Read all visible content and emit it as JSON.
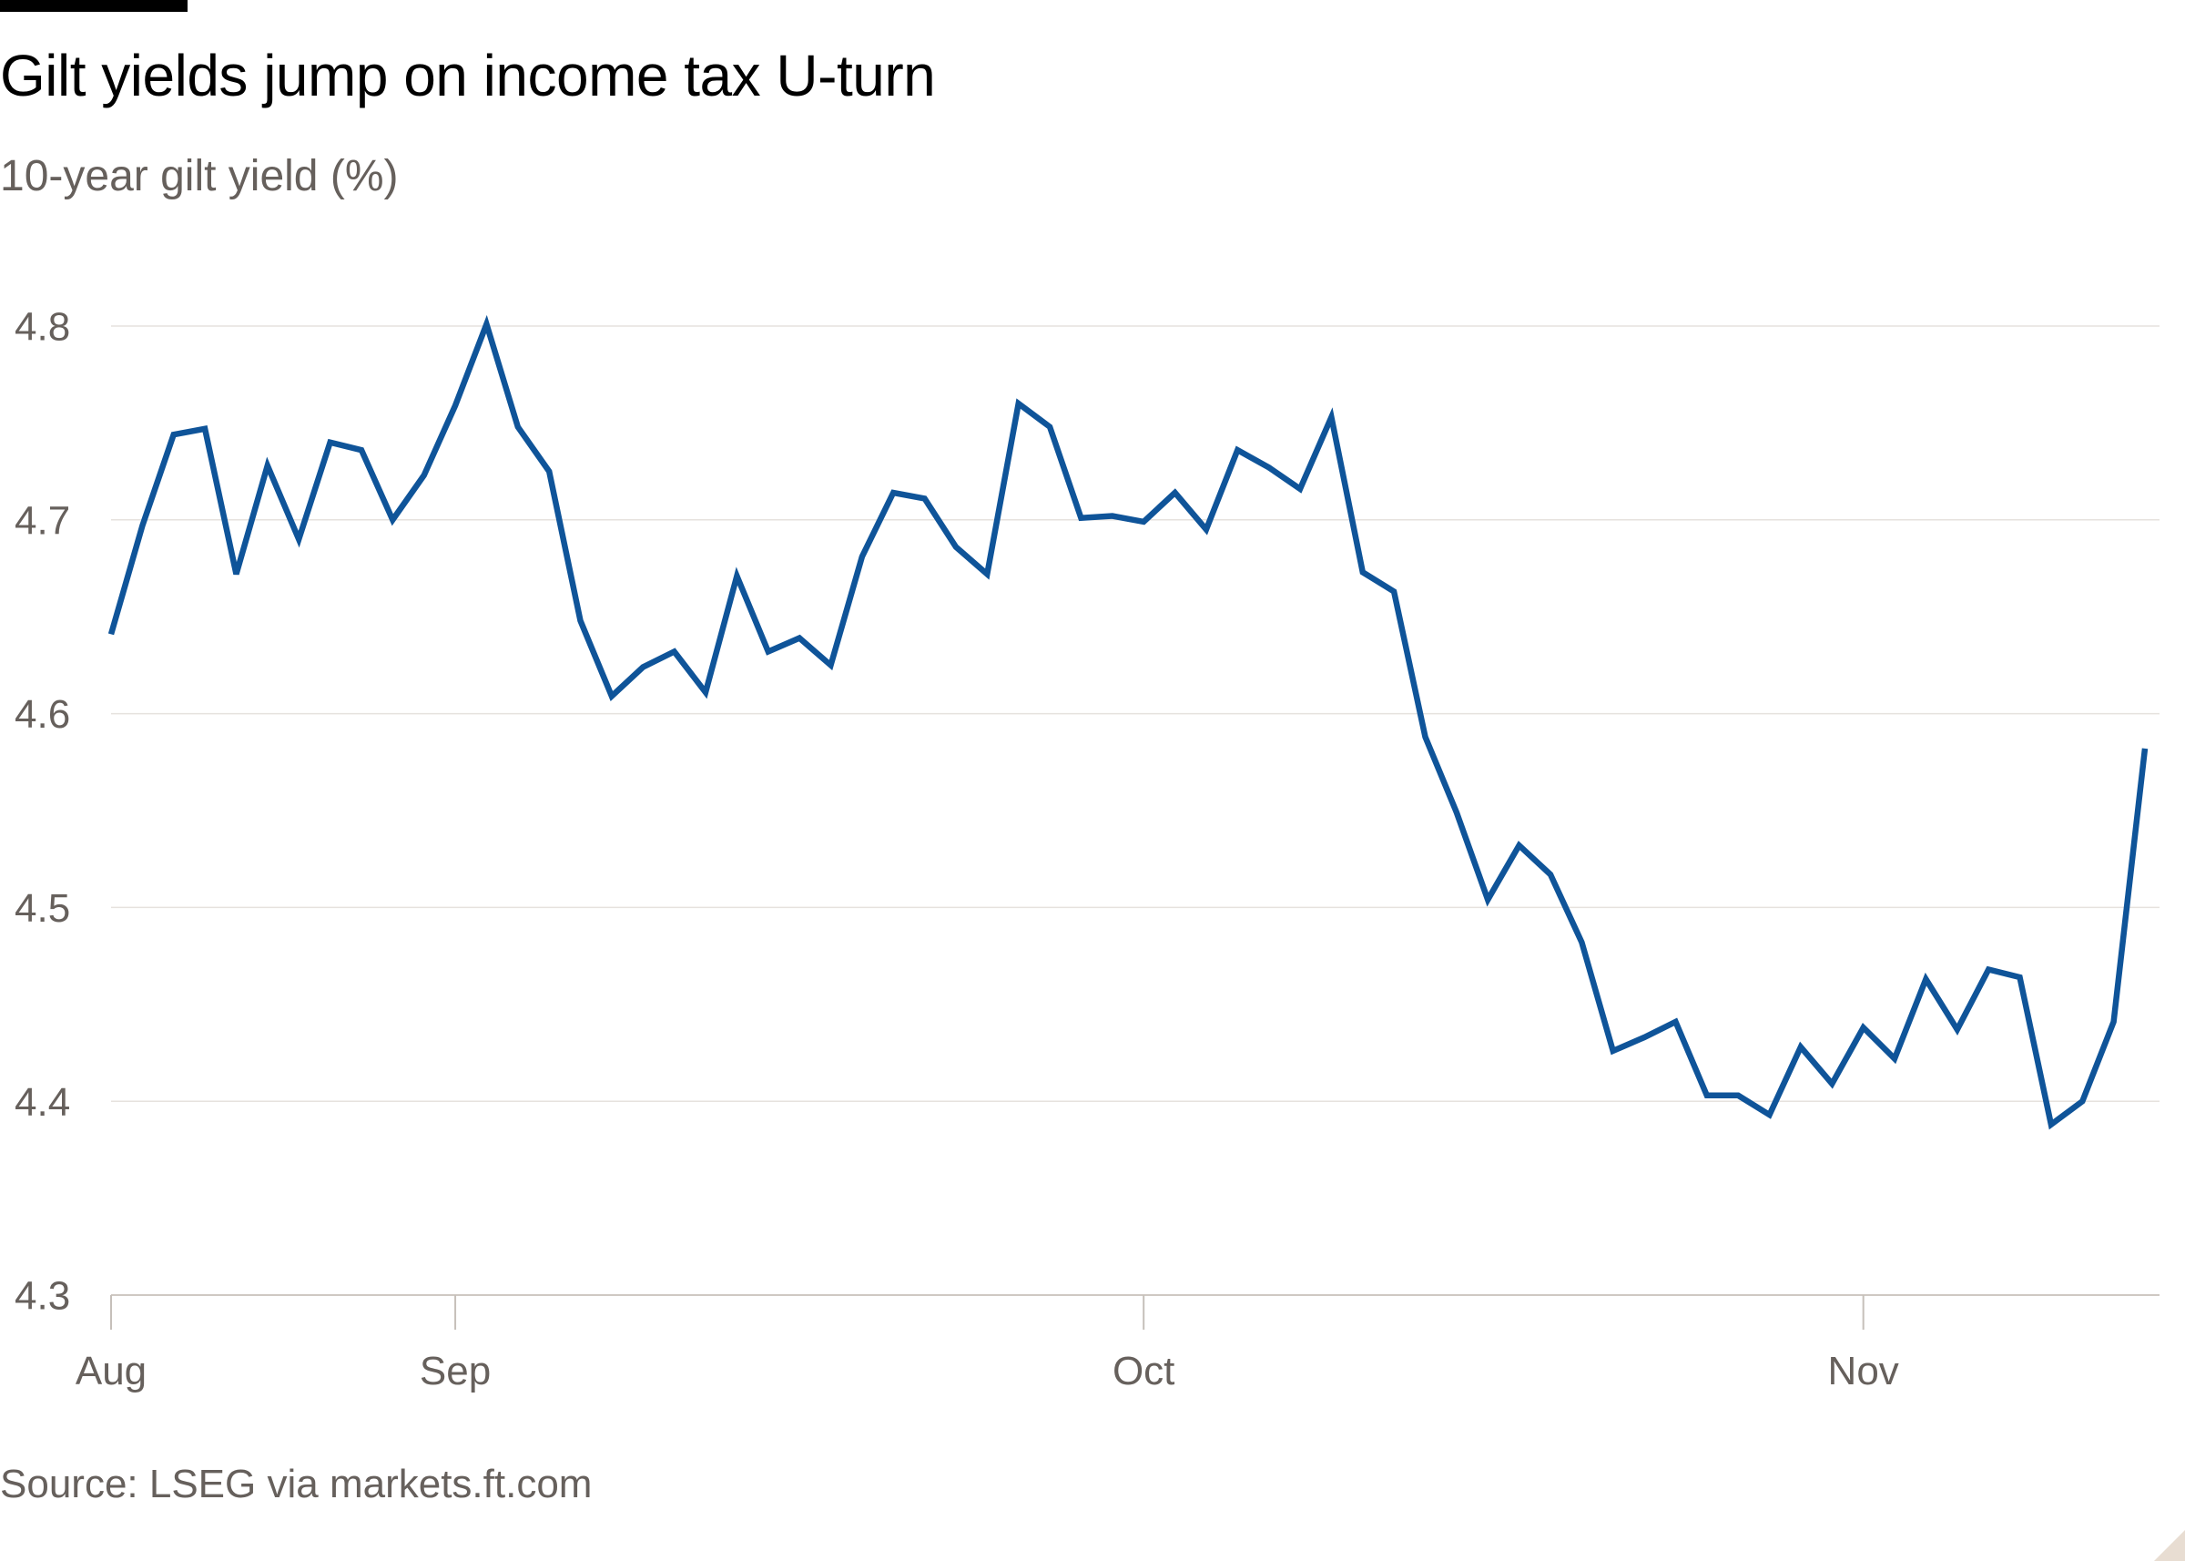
{
  "chart_data": {
    "type": "line",
    "title": "Gilt yields jump on income tax U-turn",
    "subtitle": "10-year gilt yield (%)",
    "source": "Source: LSEG via markets.ft.com",
    "xlabel": "",
    "ylabel": "10-year gilt yield (%)",
    "ylim": [
      4.3,
      4.8
    ],
    "yticks": [
      4.3,
      4.4,
      4.5,
      4.6,
      4.7,
      4.8
    ],
    "ytick_labels": [
      "4.3",
      "4.4",
      "4.5",
      "4.6",
      "4.7",
      "4.8"
    ],
    "x_tick_labels": [
      {
        "label": "Aug",
        "day_index": 0
      },
      {
        "label": "Sep",
        "day_index": 22
      },
      {
        "label": "Oct",
        "day_index": 66
      },
      {
        "label": "Nov",
        "day_index": 112
      }
    ],
    "x_domain": [
      0,
      130
    ],
    "grid": true,
    "series": [
      {
        "name": "10-year gilt yield",
        "color": "#0f5499",
        "days": [
          0,
          2,
          4,
          6,
          8,
          10,
          12,
          14,
          16,
          18,
          20,
          22,
          24,
          26,
          28,
          30,
          32,
          34,
          36,
          38,
          40,
          42,
          44,
          46,
          48,
          50,
          52,
          54,
          56,
          58,
          60,
          62,
          64,
          66,
          68,
          70,
          72,
          74,
          76,
          78,
          80,
          82,
          84,
          86,
          88,
          90,
          92,
          94,
          96,
          98,
          100,
          102,
          104,
          106,
          108,
          110,
          112,
          114,
          116,
          118,
          120,
          122,
          124,
          126,
          128,
          130
        ],
        "values": [
          4.641,
          4.697,
          4.744,
          4.747,
          4.672,
          4.728,
          4.69,
          4.74,
          4.736,
          4.7,
          4.723,
          4.759,
          4.801,
          4.748,
          4.725,
          4.648,
          4.609,
          4.624,
          4.632,
          4.611,
          4.671,
          4.632,
          4.639,
          4.625,
          4.681,
          4.714,
          4.711,
          4.686,
          4.672,
          4.76,
          4.748,
          4.701,
          4.702,
          4.699,
          4.714,
          4.695,
          4.736,
          4.727,
          4.716,
          4.753,
          4.673,
          4.663,
          4.588,
          4.549,
          4.504,
          4.532,
          4.517,
          4.482,
          4.426,
          4.433,
          4.441,
          4.403,
          4.403,
          4.393,
          4.428,
          4.409,
          4.438,
          4.422,
          4.463,
          4.437,
          4.468,
          4.464,
          4.388,
          4.4,
          4.441,
          4.582
        ]
      }
    ]
  }
}
